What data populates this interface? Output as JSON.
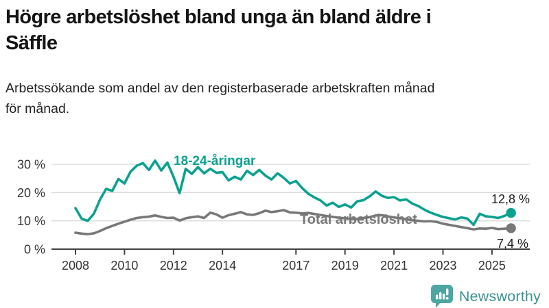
{
  "header": {
    "title_lines": [
      "Högre arbetslöshet bland unga än bland äldre i",
      "Säffle"
    ],
    "subtitle_lines": [
      "Arbetssökande som andel av den registerbaserade arbetskraften månad",
      "för månad."
    ]
  },
  "footer": {
    "brand": "Newsworthy",
    "logo_icon": "speech-bubble-bar-chart-icon"
  },
  "colors": {
    "youth_line": "#0aa18f",
    "total_line": "#787878",
    "gridline": "#d9d9d9",
    "axis": "#404040",
    "axis_text": "#333333",
    "value_label_text": "#1a1a1a",
    "logo_bubble": "#4da6a2",
    "logo_text": "#3a9390"
  },
  "chart_data": {
    "type": "line",
    "title": "Högre arbetslöshet bland unga än bland äldre i Säffle",
    "subtitle": "Arbetssökande som andel av den registerbaserade arbetskraften månad för månad.",
    "xlabel": "",
    "ylabel": "",
    "grid": "horizontal",
    "legend_position": "inline-labels-on-lines",
    "x_unit": "decimal_year_monthly_series",
    "xlim": [
      2007.9,
      2026.1
    ],
    "ylim": [
      0,
      33
    ],
    "y_ticks": [
      0,
      10,
      20,
      30
    ],
    "y_tick_labels": [
      "0 %",
      "10 %",
      "20 %",
      "30 %"
    ],
    "x_tick_years": [
      2008,
      2010,
      2012,
      2014,
      2017,
      2019,
      2021,
      2023,
      2025
    ],
    "x_tick_labels": [
      "2008",
      "2010",
      "2012",
      "2014",
      "2017",
      "2019",
      "2021",
      "2023",
      "2025"
    ],
    "x": [
      2008,
      2008.25,
      2008.5,
      2008.75,
      2009,
      2009.25,
      2009.5,
      2009.75,
      2010,
      2010.25,
      2010.5,
      2010.75,
      2011,
      2011.25,
      2011.5,
      2011.75,
      2012,
      2012.25,
      2012.5,
      2012.75,
      2013,
      2013.25,
      2013.5,
      2013.75,
      2014,
      2014.25,
      2014.5,
      2014.75,
      2015,
      2015.25,
      2015.5,
      2015.75,
      2016,
      2016.25,
      2016.5,
      2016.75,
      2017,
      2017.25,
      2017.5,
      2017.75,
      2018,
      2018.25,
      2018.5,
      2018.75,
      2019,
      2019.25,
      2019.5,
      2019.75,
      2020,
      2020.25,
      2020.5,
      2020.75,
      2021,
      2021.25,
      2021.5,
      2021.75,
      2022,
      2022.25,
      2022.5,
      2022.75,
      2023,
      2023.25,
      2023.5,
      2023.75,
      2024,
      2024.25,
      2024.5,
      2024.75,
      2025,
      2025.25,
      2025.5,
      2025.75
    ],
    "series": [
      {
        "name": "18-24-åringar",
        "color": "#0aa18f",
        "end_label": "12,8 %",
        "last_value": 12.8,
        "values": [
          14.5,
          10.8,
          10.0,
          12.5,
          17.5,
          21.3,
          20.6,
          24.8,
          23.2,
          27.4,
          29.5,
          30.4,
          28.0,
          31.3,
          27.8,
          30.6,
          25.6,
          19.8,
          28.4,
          26.6,
          29.0,
          26.8,
          28.4,
          27.0,
          27.2,
          24.3,
          25.6,
          24.6,
          27.7,
          26.2,
          28.0,
          26.0,
          24.6,
          26.8,
          25.2,
          23.2,
          24.1,
          21.6,
          19.6,
          18.3,
          17.2,
          15.4,
          16.4,
          14.9,
          15.8,
          14.7,
          16.9,
          17.3,
          18.6,
          20.4,
          18.9,
          18.1,
          18.4,
          17.2,
          17.6,
          16.1,
          15.2,
          13.9,
          12.9,
          12.1,
          11.4,
          10.9,
          10.5,
          11.2,
          10.8,
          8.6,
          12.5,
          11.6,
          11.4,
          11.0,
          11.7,
          12.8
        ]
      },
      {
        "name": "Total arbetslöshet",
        "color": "#787878",
        "end_label": "7,4 %",
        "last_value": 7.4,
        "values": [
          5.8,
          5.5,
          5.3,
          5.6,
          6.4,
          7.4,
          8.2,
          9.0,
          9.7,
          10.4,
          11.0,
          11.3,
          11.5,
          11.9,
          11.4,
          11.0,
          11.1,
          10.1,
          10.9,
          11.3,
          11.6,
          11.0,
          12.9,
          12.3,
          11.1,
          12.0,
          12.5,
          13.1,
          12.3,
          12.1,
          12.7,
          13.6,
          13.1,
          13.4,
          13.8,
          13.0,
          12.9,
          12.6,
          12.8,
          12.4,
          12.1,
          11.7,
          11.4,
          11.1,
          10.9,
          10.6,
          10.7,
          11.0,
          11.3,
          11.9,
          12.0,
          11.6,
          11.2,
          10.9,
          10.6,
          10.2,
          10.0,
          9.8,
          9.9,
          9.6,
          9.0,
          8.6,
          8.2,
          7.8,
          7.4,
          7.0,
          7.3,
          7.2,
          7.5,
          7.1,
          7.2,
          7.4
        ]
      }
    ]
  }
}
